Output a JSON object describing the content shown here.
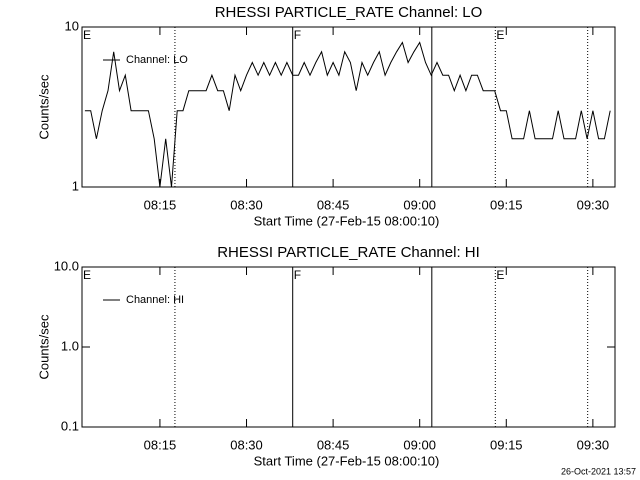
{
  "chart_data": [
    {
      "type": "line",
      "title": "RHESSI PARTICLE_RATE Channel: LO",
      "ylabel": "Counts/sec",
      "xlabel": "Start Time (27-Feb-15 08:00:10)",
      "log_y": true,
      "ylim": [
        1,
        10
      ],
      "yticks": [
        1,
        10
      ],
      "xlim": [
        "08:01:30",
        "09:33:50"
      ],
      "xticks": [
        "08:15",
        "08:30",
        "08:45",
        "09:00",
        "09:15",
        "09:30"
      ],
      "vlines": [
        {
          "x": "08:17:36",
          "style": "dotted"
        },
        {
          "x": "08:38:00",
          "style": "solid"
        },
        {
          "x": "09:02:06",
          "style": "solid"
        },
        {
          "x": "09:13:06",
          "style": "dotted"
        },
        {
          "x": "09:29:06",
          "style": "dotted"
        }
      ],
      "flags": [
        {
          "x": "08:01:30",
          "label": "E"
        },
        {
          "x": "08:38:00",
          "label": "F"
        },
        {
          "x": "09:13:06",
          "label": "E"
        }
      ],
      "x": [
        "08:02",
        "08:03",
        "08:04",
        "08:05",
        "08:06",
        "08:07",
        "08:08",
        "08:09",
        "08:10",
        "08:11",
        "08:12",
        "08:13",
        "08:14",
        "08:15",
        "08:16",
        "08:17",
        "08:18",
        "08:19",
        "08:20",
        "08:21",
        "08:22",
        "08:23",
        "08:24",
        "08:25",
        "08:26",
        "08:27",
        "08:28",
        "08:29",
        "08:30",
        "08:31",
        "08:32",
        "08:33",
        "08:34",
        "08:35",
        "08:36",
        "08:37",
        "08:38",
        "08:39",
        "08:40",
        "08:41",
        "08:42",
        "08:43",
        "08:44",
        "08:45",
        "08:46",
        "08:47",
        "08:48",
        "08:49",
        "08:50",
        "08:51",
        "08:52",
        "08:53",
        "08:54",
        "08:55",
        "08:56",
        "08:57",
        "08:58",
        "08:59",
        "09:00",
        "09:01",
        "09:02",
        "09:03",
        "09:04",
        "09:05",
        "09:06",
        "09:07",
        "09:08",
        "09:09",
        "09:10",
        "09:11",
        "09:12",
        "09:13",
        "09:14",
        "09:15",
        "09:16",
        "09:17",
        "09:18",
        "09:19",
        "09:20",
        "09:21",
        "09:22",
        "09:23",
        "09:24",
        "09:25",
        "09:26",
        "09:27",
        "09:28",
        "09:29",
        "09:30",
        "09:31",
        "09:32",
        "09:33"
      ],
      "series": [
        {
          "name": "Channel: LO",
          "color": "#000000",
          "values": [
            3,
            3,
            2,
            3,
            4,
            7,
            4,
            5,
            3,
            3,
            3,
            3,
            2,
            1,
            2,
            1,
            3,
            3,
            4,
            4,
            4,
            4,
            5,
            4,
            4,
            3,
            5,
            4,
            5,
            6,
            5,
            6,
            5,
            6,
            5,
            6,
            5,
            5,
            6,
            5,
            6,
            7,
            5,
            6,
            5,
            7,
            6,
            4,
            6,
            5,
            6,
            7,
            5,
            6,
            7,
            8,
            6,
            7,
            8,
            6,
            5,
            6,
            5,
            5,
            4,
            5,
            4,
            5,
            5,
            4,
            4,
            4,
            3,
            3,
            2,
            2,
            2,
            3,
            2,
            2,
            2,
            2,
            3,
            2,
            2,
            2,
            3,
            2,
            3,
            2,
            2,
            3
          ]
        }
      ]
    },
    {
      "type": "line",
      "title": "RHESSI PARTICLE_RATE Channel: HI",
      "ylabel": "Counts/sec",
      "xlabel": "Start Time (27-Feb-15 08:00:10)",
      "log_y": true,
      "ylim": [
        0.1,
        10
      ],
      "yticks": [
        0.1,
        {
          "value": 1,
          "label": "1.0"
        },
        {
          "value": 10,
          "label": "10.0"
        }
      ],
      "xlim": [
        "08:01:30",
        "09:33:50"
      ],
      "xticks": [
        "08:15",
        "08:30",
        "08:45",
        "09:00",
        "09:15",
        "09:30"
      ],
      "vlines": [
        {
          "x": "08:17:36",
          "style": "dotted"
        },
        {
          "x": "08:38:00",
          "style": "solid"
        },
        {
          "x": "09:02:06",
          "style": "solid"
        },
        {
          "x": "09:13:06",
          "style": "dotted"
        },
        {
          "x": "09:29:06",
          "style": "dotted"
        }
      ],
      "flags": [
        {
          "x": "08:01:30",
          "label": "E"
        },
        {
          "x": "08:38:00",
          "label": "F"
        },
        {
          "x": "09:13:06",
          "label": "E"
        }
      ],
      "x": [],
      "series": [
        {
          "name": "Channel: HI",
          "color": "#000000",
          "values": []
        }
      ]
    }
  ],
  "footer": "26-Oct-2021 13:57"
}
